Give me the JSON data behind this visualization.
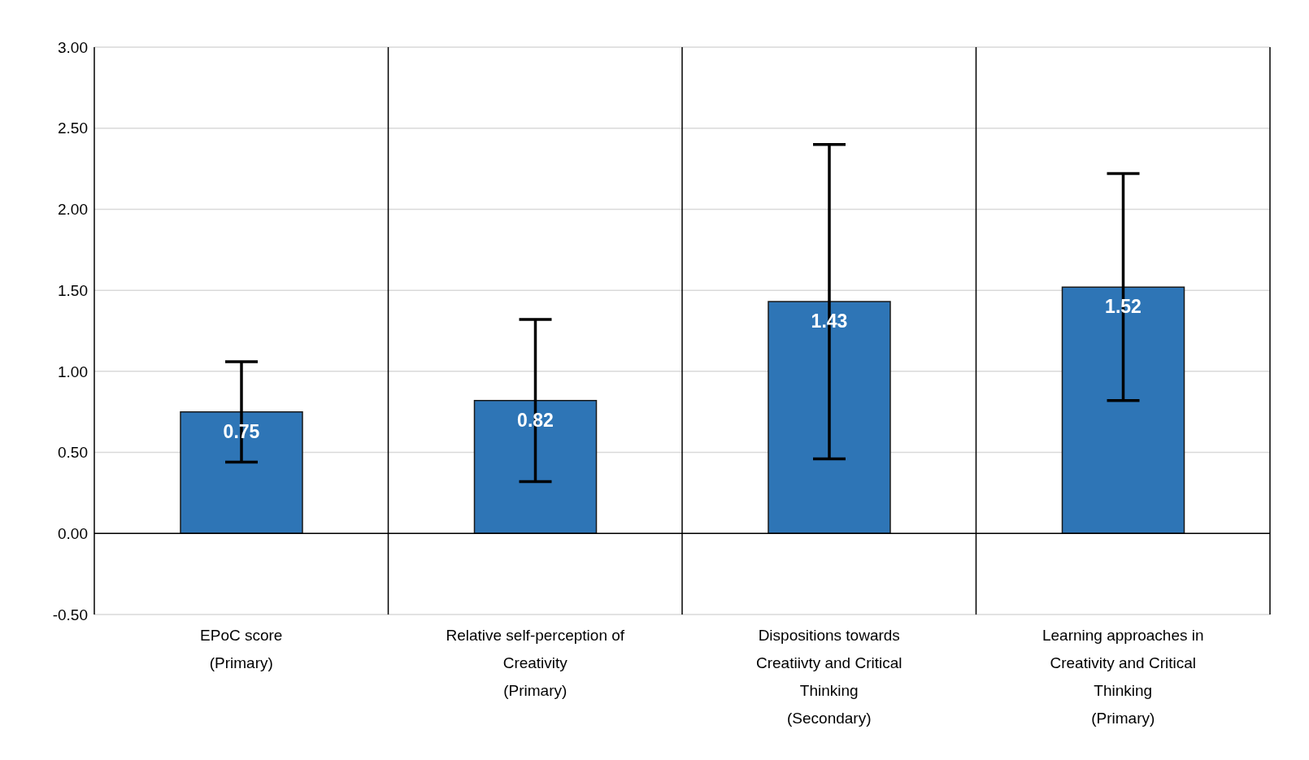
{
  "chart_data": {
    "type": "bar",
    "categories": [
      "EPoC score\n(Primary)",
      "Relative self-perception of\nCreativity\n(Primary)",
      "Dispositions towards\nCreatiivty and Critical\nThinking\n(Secondary)",
      "Learning approaches in\nCreativity and Critical\nThinking\n(Primary)"
    ],
    "values": [
      0.75,
      0.82,
      1.43,
      1.52
    ],
    "errors": [
      0.31,
      0.5,
      0.97,
      0.7
    ],
    "color": "#2e75b6",
    "ylim": [
      -0.5,
      3
    ],
    "yticks": [
      {
        "value": -0.5,
        "label": "-0.50"
      },
      {
        "value": 0,
        "label": "0.00"
      },
      {
        "value": 0.5,
        "label": "0.50"
      },
      {
        "value": 1,
        "label": "1.00"
      },
      {
        "value": 1.5,
        "label": "1.50"
      },
      {
        "value": 2,
        "label": "2.00"
      },
      {
        "value": 2.5,
        "label": "2.50"
      },
      {
        "value": 3,
        "label": "3.00"
      }
    ],
    "grid": true,
    "data_labels": true
  }
}
